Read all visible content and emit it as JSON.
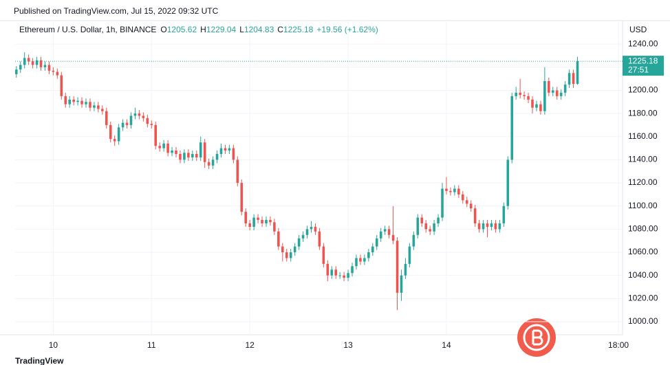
{
  "chart_data": {
    "type": "candlestick",
    "publisher": "Published on TradingView.com, Jul 15, 2022 09:32 UTC",
    "title": "Ethereum / U.S. Dollar, 1h, BINANCE",
    "legend_labels": [
      "O",
      "H",
      "L",
      "C"
    ],
    "change": "+19.56 (+1.62%)",
    "currency": "USD",
    "countdown": "27:51",
    "brand": "TradingView",
    "up_color": "#26a69a",
    "down_color": "#ef5350",
    "xlim": [
      -0.3,
      148
    ],
    "xticks": [
      {
        "value": 9,
        "label": "10"
      },
      {
        "value": 33,
        "label": "11"
      },
      {
        "value": 57,
        "label": "12"
      },
      {
        "value": 81,
        "label": "13"
      },
      {
        "value": 105,
        "label": "14"
      },
      {
        "value": 147,
        "label": "18:00"
      }
    ],
    "ylim": [
      988.7,
      1260.3
    ],
    "yticks": [
      {
        "value": 1000,
        "label": "1000.00"
      },
      {
        "value": 1020,
        "label": "1020.00"
      },
      {
        "value": 1040,
        "label": "1040.00"
      },
      {
        "value": 1060,
        "label": "1060.00"
      },
      {
        "value": 1080,
        "label": "1080.00"
      },
      {
        "value": 1100,
        "label": "1100.00"
      },
      {
        "value": 1120,
        "label": "1120.00"
      },
      {
        "value": 1140,
        "label": "1140.00"
      },
      {
        "value": 1160,
        "label": "1160.00"
      },
      {
        "value": 1180,
        "label": "1180.00"
      },
      {
        "value": 1200,
        "label": "1200.00"
      },
      {
        "value": 1220,
        "label": "1220.00"
      },
      {
        "value": 1240,
        "label": "1240.00"
      }
    ],
    "grid": true,
    "open": [
      1214,
      1218,
      1222,
      1228,
      1225,
      1222,
      1226,
      1220,
      1222,
      1217,
      1216,
      1213,
      1195,
      1188,
      1192,
      1190,
      1191,
      1188,
      1190,
      1185,
      1187,
      1184,
      1182,
      1170,
      1158,
      1156,
      1168,
      1172,
      1170,
      1178,
      1180,
      1178,
      1176,
      1171,
      1170,
      1152,
      1150,
      1154,
      1146,
      1148,
      1145,
      1140,
      1146,
      1142,
      1145,
      1142,
      1155,
      1138,
      1135,
      1140,
      1145,
      1150,
      1148,
      1150,
      1140,
      1120,
      1095,
      1085,
      1082,
      1090,
      1088,
      1085,
      1088,
      1086,
      1078,
      1065,
      1060,
      1055,
      1060,
      1065,
      1072,
      1075,
      1080,
      1082,
      1078,
      1065,
      1050,
      1040,
      1045,
      1040,
      1040,
      1038,
      1042,
      1048,
      1055,
      1052,
      1055,
      1060,
      1065,
      1072,
      1078,
      1080,
      1075,
      1070,
      1025,
      1040,
      1050,
      1065,
      1075,
      1090,
      1085,
      1080,
      1078,
      1085,
      1090,
      1115,
      1113,
      1112,
      1115,
      1110,
      1105,
      1102,
      1098,
      1085,
      1080,
      1085,
      1082,
      1085,
      1080,
      1085,
      1100,
      1140,
      1195,
      1198,
      1196,
      1195,
      1192,
      1185,
      1188,
      1182,
      1208,
      1198,
      1200,
      1195,
      1198,
      1205,
      1215,
      1205.62
    ],
    "high": [
      1221,
      1225,
      1233,
      1231,
      1228,
      1229,
      1229,
      1225,
      1225,
      1220,
      1219,
      1216,
      1198,
      1195,
      1195,
      1194,
      1194,
      1193,
      1193,
      1190,
      1190,
      1187,
      1185,
      1173,
      1161,
      1171,
      1175,
      1175,
      1181,
      1185,
      1183,
      1181,
      1179,
      1174,
      1173,
      1155,
      1157,
      1157,
      1151,
      1151,
      1148,
      1149,
      1149,
      1148,
      1148,
      1160,
      1158,
      1141,
      1143,
      1148,
      1154,
      1153,
      1153,
      1153,
      1143,
      1123,
      1098,
      1088,
      1093,
      1093,
      1091,
      1091,
      1091,
      1089,
      1081,
      1068,
      1063,
      1063,
      1068,
      1075,
      1078,
      1083,
      1087,
      1085,
      1081,
      1068,
      1053,
      1048,
      1048,
      1043,
      1043,
      1045,
      1051,
      1058,
      1058,
      1058,
      1063,
      1068,
      1075,
      1081,
      1083,
      1083,
      1100,
      1073,
      1045,
      1055,
      1068,
      1078,
      1093,
      1093,
      1088,
      1083,
      1088,
      1093,
      1120,
      1125,
      1116,
      1118,
      1118,
      1113,
      1108,
      1105,
      1101,
      1088,
      1088,
      1088,
      1088,
      1088,
      1088,
      1103,
      1143,
      1198,
      1203,
      1210,
      1199,
      1198,
      1195,
      1191,
      1191,
      1220,
      1211,
      1203,
      1203,
      1201,
      1208,
      1218,
      1218,
      1229.04
    ],
    "low": [
      1211,
      1215,
      1219,
      1222,
      1219,
      1219,
      1217,
      1217,
      1214,
      1213,
      1210,
      1192,
      1185,
      1185,
      1187,
      1187,
      1185,
      1185,
      1182,
      1182,
      1181,
      1179,
      1167,
      1155,
      1152,
      1153,
      1165,
      1167,
      1167,
      1175,
      1175,
      1173,
      1168,
      1167,
      1149,
      1147,
      1147,
      1143,
      1143,
      1142,
      1137,
      1137,
      1139,
      1139,
      1139,
      1139,
      1133,
      1132,
      1132,
      1137,
      1142,
      1145,
      1145,
      1137,
      1117,
      1092,
      1082,
      1079,
      1079,
      1085,
      1082,
      1082,
      1083,
      1075,
      1062,
      1052,
      1052,
      1052,
      1057,
      1062,
      1069,
      1072,
      1077,
      1075,
      1062,
      1047,
      1035,
      1037,
      1037,
      1037,
      1035,
      1035,
      1039,
      1045,
      1049,
      1049,
      1052,
      1057,
      1062,
      1069,
      1075,
      1072,
      1067,
      1010,
      1018,
      1037,
      1047,
      1062,
      1072,
      1082,
      1077,
      1075,
      1075,
      1082,
      1087,
      1110,
      1109,
      1109,
      1107,
      1102,
      1099,
      1095,
      1082,
      1077,
      1077,
      1073,
      1079,
      1077,
      1077,
      1082,
      1097,
      1137,
      1192,
      1193,
      1192,
      1189,
      1180,
      1182,
      1179,
      1179,
      1195,
      1195,
      1192,
      1192,
      1195,
      1202,
      1202,
      1204.83
    ],
    "close": [
      1218,
      1222,
      1228,
      1225,
      1222,
      1226,
      1220,
      1222,
      1217,
      1216,
      1213,
      1195,
      1188,
      1192,
      1190,
      1191,
      1188,
      1190,
      1185,
      1187,
      1184,
      1182,
      1170,
      1158,
      1156,
      1168,
      1172,
      1170,
      1178,
      1180,
      1178,
      1176,
      1171,
      1170,
      1152,
      1150,
      1154,
      1146,
      1148,
      1145,
      1140,
      1146,
      1142,
      1145,
      1142,
      1155,
      1138,
      1135,
      1140,
      1145,
      1150,
      1148,
      1150,
      1140,
      1120,
      1095,
      1085,
      1082,
      1090,
      1088,
      1085,
      1088,
      1086,
      1078,
      1065,
      1060,
      1055,
      1060,
      1065,
      1072,
      1075,
      1080,
      1082,
      1078,
      1065,
      1050,
      1040,
      1045,
      1040,
      1040,
      1038,
      1042,
      1048,
      1055,
      1052,
      1055,
      1060,
      1065,
      1072,
      1078,
      1080,
      1075,
      1070,
      1025,
      1040,
      1050,
      1065,
      1075,
      1090,
      1085,
      1080,
      1078,
      1085,
      1090,
      1115,
      1113,
      1112,
      1115,
      1110,
      1105,
      1102,
      1098,
      1085,
      1080,
      1085,
      1082,
      1085,
      1080,
      1085,
      1100,
      1140,
      1195,
      1198,
      1196,
      1195,
      1192,
      1185,
      1188,
      1182,
      1208,
      1198,
      1200,
      1195,
      1198,
      1205,
      1215,
      1205.62,
      1225.18
    ]
  }
}
